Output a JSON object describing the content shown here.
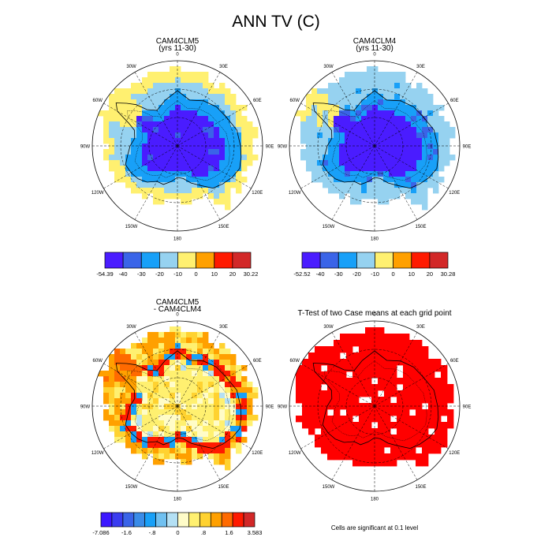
{
  "figure": {
    "title": "ANN TV (C)",
    "footnote": "Cells are significant at 0.1 level"
  },
  "colors": {
    "land_outline": "#000000",
    "grid": "#000000",
    "significant": "#ff0000"
  },
  "chart_data": [
    {
      "type": "heatmap",
      "projection": "south-polar-stereographic",
      "title": "CAM4CLM5",
      "subtitle": "(yrs 11-30)",
      "longitude_labels": [
        "0",
        "30E",
        "60E",
        "90E",
        "120E",
        "150E",
        "180",
        "150W",
        "120W",
        "90W",
        "60W",
        "30W"
      ],
      "colorbar": {
        "tick_labels": [
          "-54.39",
          "-40",
          "-30",
          "-20",
          "-10",
          "0",
          "10",
          "20",
          "30.22"
        ],
        "min": -54.39,
        "max": 30.22,
        "colors": [
          "#4a1cff",
          "#3a64e8",
          "#18a0f8",
          "#96d2f0",
          "#fff070",
          "#ffa000",
          "#ff1a00",
          "#d22828"
        ]
      },
      "field_summary": {
        "interior": -45,
        "mid": -30,
        "coast": -20,
        "margin": -12,
        "peninsula_tip": -5
      }
    },
    {
      "type": "heatmap",
      "projection": "south-polar-stereographic",
      "title": "CAM4CLM4",
      "subtitle": "(yrs 11-30)",
      "longitude_labels": [
        "0",
        "30E",
        "60E",
        "90E",
        "120E",
        "150E",
        "180",
        "150W",
        "120W",
        "90W",
        "60W",
        "30W"
      ],
      "colorbar": {
        "tick_labels": [
          "-52.52",
          "-40",
          "-30",
          "-20",
          "-10",
          "0",
          "10",
          "20",
          "30.28"
        ],
        "min": -52.52,
        "max": 30.28,
        "colors": [
          "#4a1cff",
          "#3a64e8",
          "#18a0f8",
          "#96d2f0",
          "#fff070",
          "#ffa000",
          "#ff1a00",
          "#d22828"
        ]
      },
      "field_summary": {
        "interior": -44,
        "mid": -30,
        "coast": -20,
        "margin": -12,
        "peninsula_tip": -5
      }
    },
    {
      "type": "heatmap",
      "projection": "south-polar-stereographic",
      "title": "CAM4CLM5",
      "subtitle": "- CAM4CLM4",
      "longitude_labels": [
        "0",
        "30E",
        "60E",
        "90E",
        "120E",
        "150E",
        "180",
        "150W",
        "120W",
        "90W",
        "60W",
        "30W"
      ],
      "colorbar": {
        "tick_labels": [
          "-7.086",
          "-1.6",
          "-.8",
          "0",
          ".8",
          "1.6",
          "3.583"
        ],
        "min": -7.086,
        "max": 3.583,
        "colors": [
          "#3c18ff",
          "#3a3cf0",
          "#3a64e8",
          "#3a8ce8",
          "#18a0f8",
          "#70c0f0",
          "#b4e0f4",
          "#fffcc8",
          "#fff070",
          "#ffd230",
          "#ffa000",
          "#ff6a00",
          "#ff1a00",
          "#d22828"
        ]
      },
      "field_summary": {
        "interior": -0.6,
        "mid": -1.2,
        "coast": -2.0,
        "margin": 1.2,
        "peninsula_tip": 1.6
      }
    },
    {
      "type": "heatmap",
      "projection": "south-polar-stereographic",
      "title": "T-Test of two Case means at each grid point",
      "longitude_labels": [
        "0",
        "30E",
        "60E",
        "90E",
        "120E",
        "150E",
        "180",
        "150W",
        "120W",
        "90W",
        "60W",
        "30W"
      ],
      "significance_fill_color": "#ff0000"
    }
  ]
}
